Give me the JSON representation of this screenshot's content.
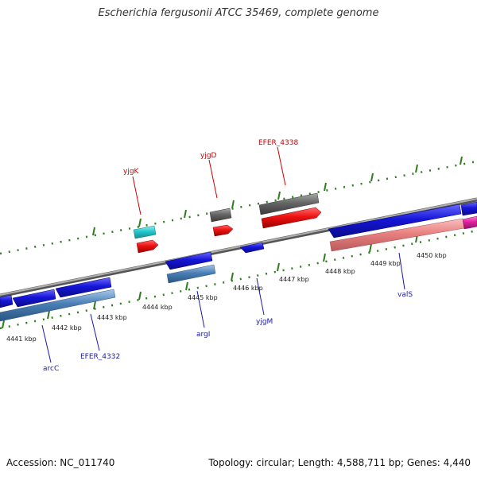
{
  "title": "Escherichia fergusonii ATCC 35469, complete genome",
  "footer": {
    "accession": "Accession: NC_011740",
    "topology": "Topology: circular; Length: 4,588,711 bp; Genes: 4,440"
  },
  "colors": {
    "backbone": "#888888",
    "tick_green": "#2e7d1e",
    "gene_blue": "#1515d8",
    "gene_steel": "#4a7fb5",
    "gene_red": "#ee1111",
    "gene_gray": "#666666",
    "gene_cyan": "#22c8cc",
    "gene_pink": "#e98080",
    "gene_magenta": "#e020a0",
    "label_red": "#cc0000",
    "label_blue": "#1a1aa8"
  },
  "ticks": [
    "4441 kbp",
    "4442 kbp",
    "4443 kbp",
    "4444 kbp",
    "4445 kbp",
    "4446 kbp",
    "4447 kbp",
    "4448 kbp",
    "4449 kbp",
    "4450 kbp"
  ],
  "labels": {
    "yjgK": "yjgK",
    "yjgD": "yjgD",
    "efer4338": "EFER_4338",
    "arcC": "arcC",
    "efer4332": "EFER_4332",
    "argI": "argI",
    "yjgM": "yjgM",
    "valS": "valS"
  }
}
